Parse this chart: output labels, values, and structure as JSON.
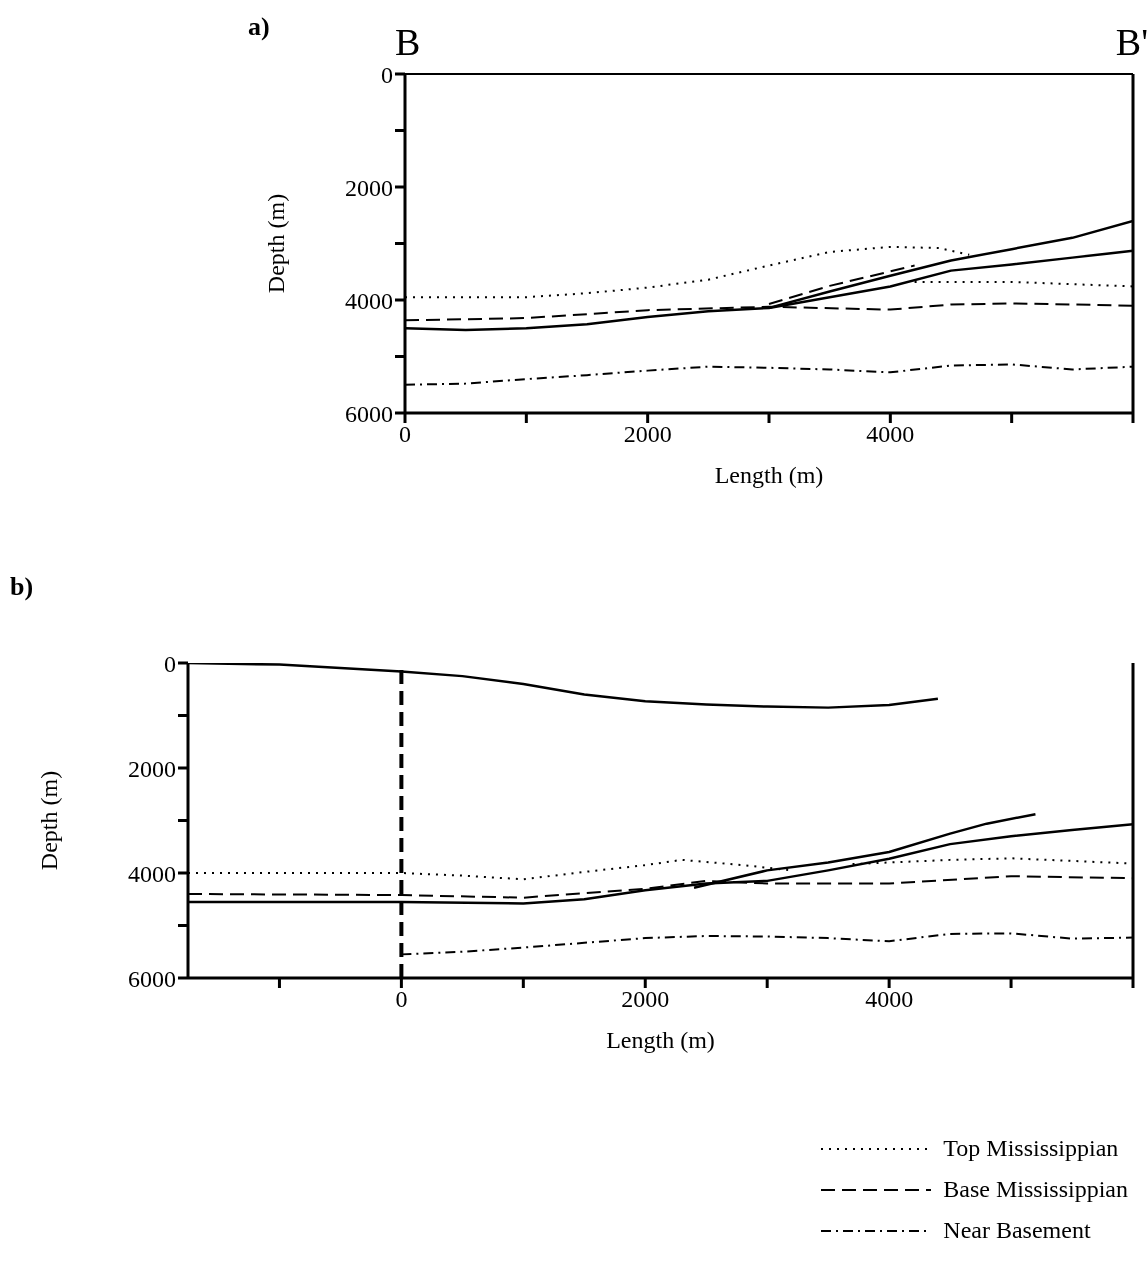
{
  "chart_data": [
    {
      "type": "line",
      "title": "a)",
      "annotations": [
        "B",
        "B'"
      ],
      "xlabel": "Length (m)",
      "ylabel": "Depth (m)",
      "xlim": [
        0,
        6000
      ],
      "ylim": [
        6000,
        0
      ],
      "xticks": [
        0,
        {
          "value": 1000,
          "label": null
        },
        2000,
        {
          "value": 3000,
          "label": null
        },
        4000,
        {
          "value": 5000,
          "label": null
        },
        {
          "value": 6000,
          "label": null
        }
      ],
      "yticks": [
        0,
        {
          "value": 1000,
          "label": null
        },
        2000,
        {
          "value": 3000,
          "label": null
        },
        4000,
        {
          "value": 5000,
          "label": null
        },
        6000
      ],
      "legend": false,
      "series": [
        {
          "color": "#000000",
          "line_style": "dotted",
          "x": [
            0,
            1000,
            1500,
            2000,
            2500,
            3000,
            3500,
            4000,
            4400,
            4650
          ],
          "values": [
            3950,
            3950,
            3880,
            3780,
            3640,
            3390,
            3150,
            3060,
            3080,
            3200
          ]
        },
        {
          "color": "#000000",
          "line_style": "dotted",
          "x": [
            4200,
            5000,
            6000
          ],
          "values": [
            3680,
            3680,
            3760
          ]
        },
        {
          "color": "#000000",
          "line_style": "dashed",
          "x": [
            0,
            1000,
            2000,
            3000,
            4000,
            4500,
            5000,
            6000
          ],
          "values": [
            4360,
            4320,
            4180,
            4120,
            4170,
            4080,
            4060,
            4100
          ]
        },
        {
          "color": "#000000",
          "line_style": "dashed",
          "x": [
            3000,
            3500,
            4200
          ],
          "values": [
            4070,
            3750,
            3390
          ]
        },
        {
          "color": "#000000",
          "line_style": "solid",
          "x": [
            0,
            500,
            1000,
            1500,
            2000,
            2500,
            3000,
            3500,
            4000,
            4500,
            5000,
            5500,
            6000
          ],
          "values": [
            4500,
            4530,
            4500,
            4430,
            4300,
            4200,
            4140,
            3950,
            3760,
            3480,
            3370,
            3250,
            3130
          ]
        },
        {
          "color": "#000000",
          "line_style": "solid",
          "x": [
            3000,
            3500,
            4000,
            4500,
            5000,
            5500,
            6000
          ],
          "values": [
            4140,
            3850,
            3570,
            3300,
            3100,
            2900,
            2600
          ]
        },
        {
          "color": "#000000",
          "line_style": "dashdot",
          "x": [
            0,
            500,
            1000,
            1500,
            2000,
            2500,
            3000,
            3500,
            4000,
            4500,
            5000,
            5500,
            6000
          ],
          "values": [
            5500,
            5480,
            5400,
            5330,
            5250,
            5180,
            5200,
            5230,
            5280,
            5160,
            5140,
            5230,
            5180
          ]
        }
      ]
    },
    {
      "type": "line",
      "title": "b)",
      "xlabel": "Length (m)",
      "ylabel": "Depth (m)",
      "xlim": [
        -1750,
        6000
      ],
      "ylim": [
        6000,
        0
      ],
      "xticks": [
        {
          "value": -1000,
          "label": null
        },
        0,
        {
          "value": 1000,
          "label": null
        },
        2000,
        {
          "value": 3000,
          "label": null
        },
        4000,
        {
          "value": 5000,
          "label": null
        },
        {
          "value": 6000,
          "label": null
        }
      ],
      "yticks": [
        0,
        {
          "value": 1000,
          "label": null
        },
        2000,
        {
          "value": 3000,
          "label": null
        },
        4000,
        {
          "value": 5000,
          "label": null
        },
        6000
      ],
      "legend": "bottom right",
      "ref_lines": [
        {
          "axis": "x",
          "value": 0,
          "color": "#000000",
          "line_style": "dashed"
        }
      ],
      "series": [
        {
          "name": "Top Mississippian",
          "color": "#000000",
          "line_style": "dotted",
          "x": [
            -1750,
            0,
            500,
            1000,
            1500,
            2000,
            2300,
            2800,
            3200
          ],
          "values": [
            4000,
            4000,
            4050,
            4120,
            3980,
            3850,
            3750,
            3850,
            3950
          ]
        },
        {
          "color": "#000000",
          "line_style": "dotted",
          "x": [
            3700,
            4500,
            5000,
            6000
          ],
          "values": [
            3830,
            3750,
            3720,
            3820
          ]
        },
        {
          "name": "Base Mississippian",
          "color": "#000000",
          "line_style": "dashed",
          "x": [
            -1750,
            0,
            1000,
            2000,
            2500,
            3000,
            4000,
            5000,
            6000
          ],
          "values": [
            4400,
            4420,
            4470,
            4300,
            4150,
            4200,
            4200,
            4060,
            4100
          ]
        },
        {
          "name": "Near Basement",
          "color": "#000000",
          "line_style": "dashdot",
          "x": [
            0,
            500,
            1000,
            1500,
            2000,
            2500,
            3000,
            3500,
            4000,
            4500,
            5000,
            5500,
            6000
          ],
          "values": [
            5550,
            5500,
            5420,
            5330,
            5240,
            5200,
            5210,
            5240,
            5300,
            5160,
            5150,
            5250,
            5230
          ]
        },
        {
          "color": "#000000",
          "line_style": "solid",
          "x": [
            -1750,
            -1000,
            0,
            500,
            1000,
            1500,
            2000,
            2500,
            3000,
            3500,
            4000,
            4400
          ],
          "values": [
            0,
            30,
            160,
            250,
            400,
            600,
            730,
            790,
            830,
            850,
            800,
            680
          ]
        },
        {
          "color": "#000000",
          "line_style": "solid",
          "x": [
            -1750,
            0,
            1000,
            1500,
            2000,
            2500,
            3000,
            3500,
            4000,
            4500,
            5000,
            5500,
            6000
          ],
          "values": [
            4550,
            4550,
            4580,
            4500,
            4330,
            4200,
            4150,
            3950,
            3730,
            3450,
            3300,
            3180,
            3070
          ]
        },
        {
          "color": "#000000",
          "line_style": "solid",
          "x": [
            2400,
            3000,
            3500,
            4000,
            4500,
            4800,
            5200
          ],
          "values": [
            4280,
            3950,
            3800,
            3600,
            3250,
            3060,
            2880
          ]
        }
      ]
    }
  ]
}
